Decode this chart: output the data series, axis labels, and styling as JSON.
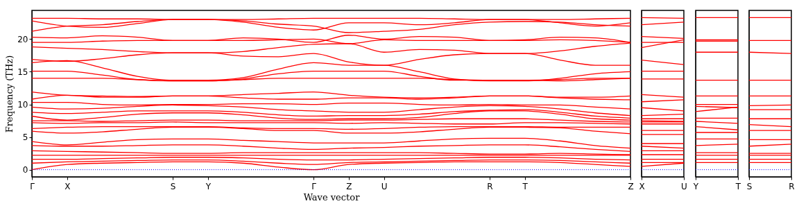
{
  "chart_data": [
    {
      "type": "line",
      "xlabel": "Wave vector",
      "ylabel": "Frequency (THz)",
      "categories": [
        "Γ",
        "X",
        null,
        null,
        "S",
        "Y",
        null,
        null,
        "Γ",
        "Z",
        "U",
        null,
        null,
        "R",
        "T",
        null,
        null,
        "Z"
      ],
      "ylim": [
        -1.1,
        24.4
      ],
      "yticks": [
        0,
        5,
        10,
        15,
        20
      ],
      "ref_lines": [
        {
          "axis": "y",
          "value": 0,
          "color": "#0000ff",
          "line_style": "dotted"
        }
      ],
      "series": [
        {
          "color": "#ff0000",
          "values": [
            23.2,
            23.2,
            23.1,
            23.1,
            23.0,
            23.0,
            23.0,
            23.1,
            23.2,
            23.2,
            23.2,
            23.2,
            23.1,
            23.0,
            23.0,
            23.0,
            23.1,
            23.2
          ]
        },
        {
          "color": "#ff0000",
          "values": [
            22.8,
            22.0,
            21.8,
            22.4,
            23.0,
            23.0,
            22.6,
            21.8,
            21.4,
            22.5,
            22.5,
            22.2,
            22.5,
            23.0,
            23.0,
            22.5,
            22.0,
            22.5
          ]
        },
        {
          "color": "#ff0000",
          "values": [
            21.2,
            22.0,
            22.2,
            22.7,
            23.0,
            23.0,
            22.8,
            22.3,
            22.0,
            21.0,
            21.2,
            21.5,
            22.2,
            22.6,
            22.7,
            22.6,
            22.2,
            22.0
          ]
        },
        {
          "color": "#ff0000",
          "values": [
            20.3,
            20.2,
            20.5,
            20.3,
            19.8,
            19.8,
            20.2,
            20.0,
            19.5,
            20.6,
            20.0,
            20.4,
            20.3,
            19.8,
            19.9,
            20.3,
            20.2,
            19.5
          ]
        },
        {
          "color": "#ff0000",
          "values": [
            19.5,
            19.5,
            19.7,
            19.8,
            19.8,
            19.8,
            19.8,
            19.9,
            20.0,
            19.3,
            19.9,
            19.8,
            19.8,
            19.8,
            19.8,
            19.9,
            19.8,
            19.5
          ]
        },
        {
          "color": "#ff0000",
          "values": [
            18.8,
            18.6,
            18.4,
            18.1,
            17.9,
            17.9,
            18.1,
            18.7,
            19.2,
            19.3,
            18.0,
            18.4,
            18.3,
            17.8,
            17.8,
            18.2,
            18.9,
            19.4
          ]
        },
        {
          "color": "#ff0000",
          "values": [
            16.9,
            16.6,
            17.0,
            17.6,
            17.9,
            17.9,
            17.4,
            17.3,
            17.8,
            16.5,
            16.0,
            16.9,
            17.6,
            17.8,
            17.8,
            16.8,
            16.0,
            16.0
          ]
        },
        {
          "color": "#ff0000",
          "values": [
            16.4,
            16.7,
            15.6,
            14.3,
            13.7,
            13.7,
            14.1,
            15.4,
            16.4,
            16.0,
            16.0,
            15.0,
            13.9,
            13.6,
            13.6,
            14.0,
            14.7,
            15.0
          ]
        },
        {
          "color": "#ff0000",
          "values": [
            15.1,
            15.1,
            14.5,
            13.8,
            13.6,
            13.6,
            13.9,
            14.7,
            15.1,
            15.1,
            15.1,
            14.3,
            13.7,
            13.7,
            13.7,
            13.6,
            13.8,
            14.0
          ]
        },
        {
          "color": "#ff0000",
          "values": [
            14.0,
            14.0,
            14.0,
            13.8,
            13.6,
            13.6,
            13.8,
            14.0,
            14.0,
            14.0,
            14.0,
            14.0,
            13.8,
            13.7,
            13.7,
            13.8,
            14.0,
            14.0
          ]
        },
        {
          "color": "#ff0000",
          "values": [
            11.9,
            11.4,
            11.3,
            11.2,
            11.3,
            11.3,
            11.5,
            11.7,
            11.9,
            11.4,
            11.1,
            11.0,
            11.1,
            11.3,
            11.3,
            11.1,
            11.1,
            11.3
          ]
        },
        {
          "color": "#ff0000",
          "values": [
            10.8,
            11.4,
            11.1,
            11.1,
            11.3,
            11.3,
            11.0,
            10.8,
            10.8,
            11.0,
            11.0,
            10.8,
            11.0,
            11.3,
            11.3,
            11.0,
            10.8,
            10.7
          ]
        },
        {
          "color": "#ff0000",
          "values": [
            10.3,
            10.3,
            10.0,
            9.9,
            10.0,
            10.0,
            10.1,
            10.1,
            10.0,
            10.2,
            10.2,
            10.0,
            9.9,
            10.0,
            9.9,
            9.9,
            9.6,
            9.3
          ]
        },
        {
          "color": "#ff0000",
          "values": [
            9.6,
            9.3,
            9.4,
            9.7,
            9.9,
            9.8,
            9.6,
            9.2,
            9.0,
            8.8,
            8.8,
            9.2,
            9.6,
            9.8,
            9.7,
            9.3,
            8.7,
            8.3
          ]
        },
        {
          "color": "#ff0000",
          "values": [
            8.8,
            8.6,
            8.8,
            9.0,
            9.0,
            9.0,
            8.8,
            8.4,
            8.2,
            8.3,
            8.3,
            8.5,
            8.9,
            9.1,
            9.2,
            8.8,
            8.2,
            7.9
          ]
        },
        {
          "color": "#ff0000",
          "values": [
            8.2,
            7.6,
            8.0,
            8.5,
            8.7,
            8.7,
            8.4,
            7.9,
            7.7,
            7.8,
            7.8,
            8.0,
            8.6,
            9.0,
            9.0,
            8.5,
            7.8,
            7.6
          ]
        },
        {
          "color": "#ff0000",
          "values": [
            7.5,
            7.5,
            7.4,
            7.5,
            7.6,
            7.6,
            7.5,
            7.5,
            7.5,
            7.6,
            7.6,
            7.7,
            7.8,
            7.8,
            7.8,
            7.6,
            7.4,
            7.3
          ]
        },
        {
          "color": "#ff0000",
          "values": [
            7.2,
            7.1,
            7.2,
            7.2,
            7.3,
            7.2,
            7.2,
            7.2,
            7.2,
            7.1,
            7.2,
            7.1,
            7.0,
            7.0,
            7.2,
            7.2,
            7.1,
            7.0
          ]
        },
        {
          "color": "#ff0000",
          "values": [
            6.3,
            6.5,
            6.6,
            6.6,
            6.6,
            6.6,
            6.4,
            6.3,
            6.3,
            6.2,
            6.3,
            6.5,
            6.6,
            6.6,
            6.6,
            6.5,
            6.5,
            6.5
          ]
        },
        {
          "color": "#ff0000",
          "values": [
            5.9,
            5.6,
            5.8,
            6.2,
            6.5,
            6.5,
            6.3,
            6.0,
            6.0,
            5.6,
            5.6,
            5.8,
            6.2,
            6.5,
            6.5,
            6.4,
            5.9,
            5.5
          ]
        },
        {
          "color": "#ff0000",
          "values": [
            4.3,
            3.8,
            4.2,
            4.6,
            4.7,
            4.7,
            4.5,
            4.3,
            4.1,
            4.1,
            4.1,
            4.4,
            4.7,
            4.8,
            4.8,
            4.4,
            3.7,
            3.3
          ]
        },
        {
          "color": "#ff0000",
          "values": [
            3.7,
            3.6,
            3.6,
            3.7,
            3.8,
            3.8,
            3.6,
            3.3,
            3.1,
            3.3,
            3.4,
            3.6,
            3.7,
            3.8,
            3.8,
            3.5,
            3.1,
            2.8
          ]
        },
        {
          "color": "#ff0000",
          "values": [
            2.9,
            2.8,
            2.7,
            2.6,
            2.5,
            2.5,
            2.6,
            2.6,
            2.6,
            2.6,
            2.6,
            2.6,
            2.5,
            2.4,
            2.4,
            2.5,
            2.4,
            2.3
          ]
        },
        {
          "color": "#ff0000",
          "values": [
            2.2,
            2.2,
            2.2,
            2.2,
            2.2,
            2.2,
            2.2,
            2.2,
            2.2,
            2.2,
            2.2,
            2.2,
            2.2,
            2.2,
            2.2,
            2.2,
            2.2,
            2.2
          ]
        },
        {
          "color": "#ff0000",
          "values": [
            1.6,
            1.6,
            1.7,
            1.8,
            1.9,
            1.9,
            1.8,
            1.6,
            1.5,
            1.5,
            1.6,
            1.7,
            1.8,
            1.9,
            1.9,
            1.8,
            1.6,
            1.5
          ]
        },
        {
          "color": "#ff0000",
          "values": [
            1.0,
            1.2,
            1.3,
            1.4,
            1.5,
            1.5,
            1.3,
            1.0,
            0.8,
            1.1,
            1.2,
            1.3,
            1.4,
            1.5,
            1.5,
            1.4,
            1.2,
            1.0
          ]
        },
        {
          "color": "#ff0000",
          "values": [
            0,
            0.8,
            1.0,
            1.1,
            1.2,
            1.2,
            1.0,
            0.4,
            0,
            0.8,
            1.0,
            1.1,
            1.2,
            1.2,
            1.2,
            1.1,
            0.8,
            0.5
          ]
        }
      ]
    },
    {
      "type": "line",
      "tick_labels": "x",
      "categories": [
        "X",
        "U"
      ],
      "ylim": [
        -1.1,
        24.4
      ],
      "yticks": [
        0,
        5,
        10,
        15,
        20
      ],
      "ref_lines": [
        {
          "axis": "y",
          "value": 0,
          "color": "#0000ff",
          "line_style": "dotted"
        }
      ],
      "series": [
        {
          "color": "#ff0000",
          "values": [
            23.3,
            23.2
          ]
        },
        {
          "color": "#ff0000",
          "values": [
            22.2,
            22.6
          ]
        },
        {
          "color": "#ff0000",
          "values": [
            20.4,
            20.1
          ]
        },
        {
          "color": "#ff0000",
          "values": [
            19.5,
            19.5
          ]
        },
        {
          "color": "#ff0000",
          "values": [
            18.7,
            19.9
          ]
        },
        {
          "color": "#ff0000",
          "values": [
            16.8,
            16.1
          ]
        },
        {
          "color": "#ff0000",
          "values": [
            15.1,
            15.1
          ]
        },
        {
          "color": "#ff0000",
          "values": [
            13.9,
            13.9
          ]
        },
        {
          "color": "#ff0000",
          "values": [
            11.5,
            11.1
          ]
        },
        {
          "color": "#ff0000",
          "values": [
            10.4,
            10.7
          ]
        },
        {
          "color": "#ff0000",
          "values": [
            9.5,
            9.0
          ]
        },
        {
          "color": "#ff0000",
          "values": [
            8.3,
            8.5
          ]
        },
        {
          "color": "#ff0000",
          "values": [
            7.8,
            7.8
          ]
        },
        {
          "color": "#ff0000",
          "values": [
            7.5,
            7.4
          ]
        },
        {
          "color": "#ff0000",
          "values": [
            7.3,
            7.3
          ]
        },
        {
          "color": "#ff0000",
          "values": [
            7.0,
            7.0
          ]
        },
        {
          "color": "#ff0000",
          "values": [
            6.0,
            6.0
          ]
        },
        {
          "color": "#ff0000",
          "values": [
            5.4,
            5.4
          ]
        },
        {
          "color": "#ff0000",
          "values": [
            4.0,
            4.0
          ]
        },
        {
          "color": "#ff0000",
          "values": [
            3.6,
            3.3
          ]
        },
        {
          "color": "#ff0000",
          "values": [
            2.9,
            2.9
          ]
        },
        {
          "color": "#ff0000",
          "values": [
            2.3,
            2.3
          ]
        },
        {
          "color": "#ff0000",
          "values": [
            1.6,
            1.6
          ]
        },
        {
          "color": "#ff0000",
          "values": [
            1.1,
            1.1
          ]
        },
        {
          "color": "#ff0000",
          "values": [
            0.5,
            1.0
          ]
        }
      ]
    },
    {
      "type": "line",
      "tick_labels": "x",
      "categories": [
        "Y",
        "T"
      ],
      "ylim": [
        -1.1,
        24.4
      ],
      "yticks": [
        0,
        5,
        10,
        15,
        20
      ],
      "ref_lines": [
        {
          "axis": "y",
          "value": 0,
          "color": "#0000ff",
          "line_style": "dotted"
        }
      ],
      "series": [
        {
          "color": "#ff0000",
          "values": [
            23.3,
            23.3
          ]
        },
        {
          "color": "#ff0000",
          "values": [
            19.9,
            19.9
          ]
        },
        {
          "color": "#ff0000",
          "values": [
            19.7,
            19.7
          ]
        },
        {
          "color": "#ff0000",
          "values": [
            18.0,
            18.0
          ]
        },
        {
          "color": "#ff0000",
          "values": [
            13.7,
            13.7
          ]
        },
        {
          "color": "#ff0000",
          "values": [
            11.3,
            11.3
          ]
        },
        {
          "color": "#ff0000",
          "values": [
            10.0,
            10.0
          ]
        },
        {
          "color": "#ff0000",
          "values": [
            9.7,
            9.5
          ]
        },
        {
          "color": "#ff0000",
          "values": [
            8.9,
            9.6
          ]
        },
        {
          "color": "#ff0000",
          "values": [
            7.9,
            7.9
          ]
        },
        {
          "color": "#ff0000",
          "values": [
            7.4,
            7.1
          ]
        },
        {
          "color": "#ff0000",
          "values": [
            6.6,
            6.1
          ]
        },
        {
          "color": "#ff0000",
          "values": [
            5.7,
            5.7
          ]
        },
        {
          "color": "#ff0000",
          "values": [
            4.7,
            4.7
          ]
        },
        {
          "color": "#ff0000",
          "values": [
            3.7,
            3.9
          ]
        },
        {
          "color": "#ff0000",
          "values": [
            2.6,
            2.6
          ]
        },
        {
          "color": "#ff0000",
          "values": [
            2.2,
            2.2
          ]
        },
        {
          "color": "#ff0000",
          "values": [
            1.6,
            1.6
          ]
        },
        {
          "color": "#ff0000",
          "values": [
            1.1,
            1.1
          ]
        }
      ]
    },
    {
      "type": "line",
      "tick_labels": "x",
      "categories": [
        "S",
        "R"
      ],
      "ylim": [
        -1.1,
        24.4
      ],
      "yticks": [
        0,
        5,
        10,
        15,
        20
      ],
      "ref_lines": [
        {
          "axis": "y",
          "value": 0,
          "color": "#0000ff",
          "line_style": "dotted"
        }
      ],
      "series": [
        {
          "color": "#ff0000",
          "values": [
            23.3,
            23.3
          ]
        },
        {
          "color": "#ff0000",
          "values": [
            19.8,
            19.8
          ]
        },
        {
          "color": "#ff0000",
          "values": [
            18.0,
            17.8
          ]
        },
        {
          "color": "#ff0000",
          "values": [
            13.7,
            13.7
          ]
        },
        {
          "color": "#ff0000",
          "values": [
            11.3,
            11.3
          ]
        },
        {
          "color": "#ff0000",
          "values": [
            9.8,
            9.9
          ]
        },
        {
          "color": "#ff0000",
          "values": [
            9.2,
            9.2
          ]
        },
        {
          "color": "#ff0000",
          "values": [
            7.8,
            7.8
          ]
        },
        {
          "color": "#ff0000",
          "values": [
            6.9,
            6.6
          ]
        },
        {
          "color": "#ff0000",
          "values": [
            6.0,
            6.0
          ]
        },
        {
          "color": "#ff0000",
          "values": [
            4.6,
            4.6
          ]
        },
        {
          "color": "#ff0000",
          "values": [
            3.6,
            3.9
          ]
        },
        {
          "color": "#ff0000",
          "values": [
            2.5,
            2.5
          ]
        },
        {
          "color": "#ff0000",
          "values": [
            2.2,
            2.2
          ]
        },
        {
          "color": "#ff0000",
          "values": [
            1.6,
            1.6
          ]
        },
        {
          "color": "#ff0000",
          "values": [
            1.1,
            1.1
          ]
        }
      ]
    }
  ]
}
